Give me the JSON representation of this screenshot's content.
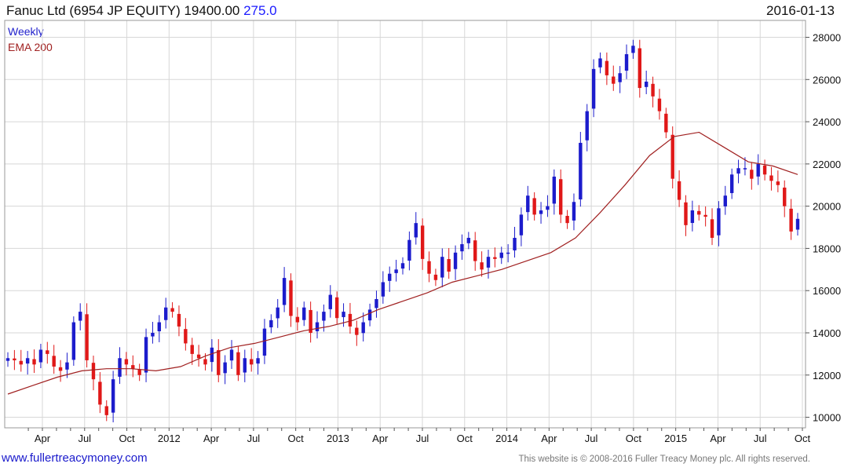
{
  "header": {
    "title": "Fanuc Ltd (6954 JP EQUITY) 19400.00",
    "change": "275.0",
    "date": "2016-01-13"
  },
  "legend": {
    "weekly": "Weekly",
    "ema": "EMA 200"
  },
  "footer": {
    "url": "www.fullertreacymoney.com",
    "copyright": "This website is © 2008-2016 Fuller Treacy Money plc. All rights reserved."
  },
  "colors": {
    "up": "#1c1ccc",
    "down": "#e01818",
    "ema": "#a02020",
    "grid": "#d7d7d7"
  },
  "chart_data": {
    "type": "candlestick",
    "interval": "weekly",
    "x_labels": [
      "Apr",
      "Jul",
      "Oct",
      "2012",
      "Apr",
      "Jul",
      "Oct",
      "2013",
      "Apr",
      "Jul",
      "Oct",
      "2014",
      "Apr",
      "Jul",
      "Oct",
      "2015",
      "Apr",
      "Jul",
      "Oct"
    ],
    "y_ticks": [
      10000,
      12000,
      14000,
      16000,
      18000,
      20000,
      22000,
      24000,
      26000,
      28000
    ],
    "ylim": [
      9500,
      28800
    ],
    "grid": true,
    "y_axis_position": "right",
    "legend_position": "top-left",
    "series": [
      {
        "name": "Weekly",
        "kind": "close",
        "values": [
          12800,
          12700,
          12500,
          12800,
          12500,
          13200,
          13000,
          12400,
          12200,
          12600,
          14500,
          15000,
          12700,
          11800,
          10600,
          10100,
          11800,
          12800,
          12500,
          12300,
          12000,
          13800,
          14000,
          14500,
          15200,
          15000,
          14300,
          13500,
          13000,
          12800,
          12500,
          13300,
          12000,
          12600,
          13200,
          12000,
          12800,
          12500,
          12800,
          14200,
          14600,
          15200,
          16600,
          14800,
          14500,
          15200,
          14000,
          14500,
          15000,
          15800,
          14700,
          15000,
          14300,
          13900,
          14500,
          15100,
          15600,
          16400,
          16800,
          17000,
          17300,
          18400,
          19200,
          17500,
          16800,
          16500,
          17600,
          16900,
          17800,
          18200,
          18500,
          17400,
          17000,
          17600,
          17500,
          17800,
          17800,
          18500,
          19600,
          20500,
          19600,
          19800,
          20000,
          21400,
          19600,
          19200,
          20200,
          23000,
          24500,
          26500,
          27000,
          26200,
          25800,
          26300,
          27200,
          27600,
          25600,
          25900,
          25200,
          24500,
          23500,
          21300,
          20300,
          19100,
          19800,
          19600,
          19500,
          18500,
          19900,
          20500,
          21500,
          21800,
          21800,
          21300,
          22000,
          21500,
          21200,
          21000,
          20000,
          18800,
          19400
        ]
      },
      {
        "name": "EMA 200",
        "kind": "ema",
        "values": [
          11100,
          11500,
          11900,
          12200,
          12300,
          12300,
          12200,
          12400,
          12900,
          13300,
          13500,
          13800,
          14100,
          14300,
          14600,
          15100,
          15500,
          15900,
          16400,
          16700,
          17000,
          17400,
          17800,
          18500,
          19700,
          21000,
          22400,
          23300,
          23500,
          22800,
          22100,
          21900,
          21500
        ]
      }
    ]
  }
}
